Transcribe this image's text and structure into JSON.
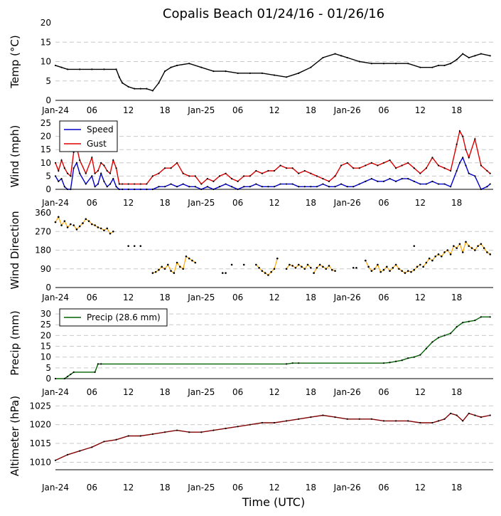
{
  "title": "Copalis Beach 01/24/16 - 01/26/16",
  "xlabel": "Time (UTC)",
  "x_ticks": [
    "Jan-24",
    "06",
    "12",
    "18",
    "Jan-25",
    "06",
    "12",
    "18",
    "Jan-26",
    "06",
    "12",
    "18"
  ],
  "colors": {
    "temp": "#000000",
    "speed": "#0000cc",
    "gust": "#dd0000",
    "direction": "#ffa500",
    "precip": "#006400",
    "altimeter": "#800000"
  },
  "chart_data": [
    {
      "type": "line",
      "name": "temperature",
      "ylabel": "Temp (°C)",
      "ylim": [
        0,
        20
      ],
      "yticks": [
        "0",
        "5",
        "10",
        "15",
        "20"
      ],
      "x_unit": "hours since Jan-24 00:00 UTC",
      "series": [
        {
          "name": "Temp",
          "x": [
            0,
            1,
            2,
            4,
            6,
            8,
            10,
            10.5,
            11,
            12,
            13,
            14,
            15,
            16,
            17,
            18,
            19,
            20,
            22,
            24,
            26,
            28,
            30,
            32,
            34,
            36,
            38,
            40,
            42,
            44,
            46,
            47,
            48,
            50,
            52,
            54,
            56,
            58,
            60,
            62,
            63,
            64,
            65,
            66,
            67,
            68,
            69,
            70,
            71.5
          ],
          "values": [
            9,
            8.5,
            8,
            8,
            8,
            8,
            8,
            6,
            4.5,
            3.5,
            3,
            3,
            3,
            2.5,
            4.5,
            7.5,
            8.5,
            9,
            9.5,
            8.5,
            7.5,
            7.5,
            7,
            7,
            7,
            6.5,
            6,
            7,
            8.5,
            11,
            12,
            11.5,
            11,
            10,
            9.5,
            9.5,
            9.5,
            9.5,
            8.5,
            8.5,
            9,
            9,
            9.5,
            10.5,
            12,
            11,
            11.5,
            12,
            11.5
          ]
        }
      ]
    },
    {
      "type": "line",
      "name": "wind",
      "ylabel": "Wind (mph)",
      "ylim": [
        0,
        25
      ],
      "yticks": [
        "0",
        "5",
        "10",
        "15",
        "20",
        "25"
      ],
      "legend": [
        "Speed",
        "Gust"
      ],
      "series": [
        {
          "name": "Speed",
          "x": [
            0,
            0.5,
            1,
            1.5,
            2,
            2.5,
            3,
            3.5,
            4,
            5,
            6,
            6.5,
            7,
            7.5,
            8,
            8.5,
            9,
            9.5,
            10,
            10.5,
            11,
            12,
            13,
            14,
            15,
            16,
            17,
            18,
            19,
            20,
            21,
            22,
            23,
            24,
            25,
            26,
            27,
            28,
            29,
            30,
            31,
            32,
            33,
            34,
            35,
            36,
            37,
            38,
            39,
            40,
            41,
            42,
            43,
            44,
            45,
            46,
            47,
            48,
            49,
            50,
            51,
            52,
            53,
            54,
            55,
            56,
            57,
            58,
            59,
            60,
            61,
            62,
            63,
            64,
            65,
            66,
            66.5,
            67,
            67.5,
            68,
            69,
            70,
            71,
            71.5
          ],
          "values": [
            5,
            3,
            4,
            1,
            0,
            0,
            8,
            10,
            6,
            2,
            5,
            1,
            2,
            6,
            3,
            1,
            2,
            4,
            1,
            0,
            0,
            0,
            0,
            0,
            0,
            0,
            1,
            1,
            2,
            1,
            2,
            1,
            1,
            0,
            1,
            0,
            1,
            2,
            1,
            0,
            1,
            1,
            2,
            1,
            1,
            1,
            2,
            2,
            2,
            1,
            1,
            1,
            1,
            2,
            1,
            1,
            2,
            1,
            1,
            2,
            3,
            4,
            3,
            3,
            4,
            3,
            4,
            4,
            3,
            2,
            2,
            3,
            2,
            2,
            1,
            7,
            10,
            12,
            9,
            6,
            5,
            0,
            1,
            2
          ]
        },
        {
          "name": "Gust",
          "x": [
            0,
            0.5,
            1,
            1.5,
            2,
            2.5,
            3,
            3.5,
            4,
            5,
            6,
            6.5,
            7,
            7.5,
            8,
            8.5,
            9,
            9.5,
            10,
            10.5,
            11,
            12,
            13,
            14,
            15,
            16,
            17,
            18,
            19,
            20,
            21,
            22,
            23,
            24,
            25,
            26,
            27,
            28,
            29,
            30,
            31,
            32,
            33,
            34,
            35,
            36,
            37,
            38,
            39,
            40,
            41,
            42,
            43,
            44,
            45,
            46,
            47,
            48,
            49,
            50,
            51,
            52,
            53,
            54,
            55,
            56,
            57,
            58,
            59,
            60,
            61,
            62,
            63,
            64,
            65,
            66,
            66.5,
            67,
            67.5,
            68,
            69,
            70,
            71,
            71.5
          ],
          "values": [
            10,
            7,
            11,
            8,
            6,
            5,
            14,
            16,
            11,
            6,
            12,
            6,
            7,
            10,
            9,
            7,
            6,
            11,
            8,
            2,
            2,
            2,
            2,
            2,
            2,
            5,
            6,
            8,
            8,
            10,
            6,
            5,
            5,
            2,
            4,
            3,
            5,
            6,
            4,
            3,
            5,
            5,
            7,
            6,
            7,
            7,
            9,
            8,
            8,
            6,
            7,
            6,
            5,
            4,
            3,
            5,
            9,
            10,
            8,
            8,
            9,
            10,
            9,
            10,
            11,
            8,
            9,
            10,
            8,
            6,
            8,
            12,
            9,
            8,
            7,
            17,
            22,
            20,
            15,
            12,
            19,
            9,
            7,
            6
          ]
        }
      ]
    },
    {
      "type": "scatter",
      "name": "wind_direction",
      "ylabel": "Wind Direction",
      "ylim": [
        0,
        360
      ],
      "yticks": [
        "0",
        "90",
        "180",
        "270",
        "360"
      ],
      "series": [
        {
          "name": "Direction",
          "segments": [
            {
              "x": [
                0,
                0.5,
                1,
                1.5,
                2,
                2.5
              ],
              "values": [
                315,
                340,
                300,
                320,
                290,
                305
              ]
            },
            {
              "x": [
                3,
                3.5,
                4,
                4.5,
                5,
                5.5,
                6,
                6.5,
                7,
                7.5,
                8,
                8.5,
                9,
                9.5
              ],
              "values": [
                300,
                280,
                295,
                310,
                330,
                320,
                305,
                300,
                290,
                285,
                275,
                285,
                260,
                270
              ]
            },
            {
              "x": [
                16,
                16.5,
                17,
                17.5,
                18,
                18.5,
                19,
                19.5,
                20,
                20.5,
                21,
                21.5,
                22,
                22.5,
                23
              ],
              "values": [
                70,
                75,
                85,
                100,
                90,
                110,
                80,
                70,
                120,
                100,
                90,
                150,
                140,
                130,
                120
              ]
            },
            {
              "x": [
                33,
                33.5,
                34,
                34.5,
                35,
                35.5,
                36,
                36.5
              ],
              "values": [
                110,
                95,
                80,
                70,
                60,
                75,
                90,
                140
              ]
            },
            {
              "x": [
                38,
                38.5,
                39,
                39.5,
                40,
                40.5,
                41,
                41.5,
                42
              ],
              "values": [
                90,
                110,
                105,
                95,
                110,
                100,
                90,
                110,
                95
              ]
            },
            {
              "x": [
                42.5,
                43,
                43.5,
                44,
                44.5,
                45,
                45.5,
                46
              ],
              "values": [
                70,
                95,
                110,
                100,
                90,
                105,
                85,
                80
              ]
            },
            {
              "x": [
                51,
                51.5,
                52,
                52.5,
                53,
                53.5,
                54,
                54.5,
                55,
                55.5,
                56,
                56.5,
                57,
                57.5,
                58,
                58.5,
                59,
                59.5,
                60
              ],
              "values": [
                130,
                100,
                80,
                90,
                110,
                75,
                85,
                100,
                80,
                95,
                110,
                90,
                80,
                70,
                80,
                75,
                85,
                100,
                110
              ]
            },
            {
              "x": [
                60.5,
                61,
                61.5,
                62,
                62.5,
                63,
                63.5,
                64,
                64.5,
                65,
                65.5,
                66,
                66.5,
                67,
                67.5,
                68,
                68.5,
                69,
                69.5,
                70,
                70.5,
                71,
                71.5
              ],
              "values": [
                100,
                120,
                140,
                130,
                150,
                160,
                150,
                170,
                180,
                160,
                200,
                190,
                210,
                170,
                220,
                200,
                190,
                180,
                200,
                210,
                190,
                170,
                160
              ]
            }
          ]
        },
        {
          "name": "Direction (isolated)",
          "x": [
            12,
            13,
            14,
            27.5,
            28,
            29,
            31,
            49,
            49.5,
            59
          ],
          "values": [
            200,
            200,
            200,
            70,
            70,
            110,
            110,
            95,
            95,
            200
          ]
        }
      ]
    },
    {
      "type": "line",
      "name": "precip",
      "ylabel": "Precip (mm)",
      "ylim": [
        0,
        33
      ],
      "yticks": [
        "0",
        "5",
        "10",
        "15",
        "20",
        "25",
        "30"
      ],
      "legend": [
        "Precip (28.6 mm)"
      ],
      "series": [
        {
          "name": "Precip",
          "x": [
            0,
            1.5,
            2,
            2.5,
            3,
            6.5,
            7,
            7.5,
            38,
            39,
            40,
            54,
            55,
            56,
            57,
            58,
            59,
            60,
            61,
            62,
            63,
            64,
            65,
            66,
            67,
            68,
            69,
            70,
            71.5
          ],
          "values": [
            0,
            0,
            1,
            2,
            3,
            3,
            6.8,
            6.8,
            6.8,
            7.2,
            7.2,
            7.2,
            7.5,
            8,
            8.5,
            9.5,
            10,
            11,
            14,
            17,
            19,
            20,
            21,
            24,
            26,
            26.5,
            27,
            28.6,
            28.6
          ]
        }
      ]
    },
    {
      "type": "line",
      "name": "altimeter",
      "ylabel": "Altimeter (hPa)",
      "ylim": [
        1008,
        1026
      ],
      "yticks": [
        "1010",
        "1015",
        "1020",
        "1025"
      ],
      "series": [
        {
          "name": "Altimeter",
          "x": [
            0,
            2,
            4,
            6,
            8,
            10,
            12,
            14,
            16,
            18,
            20,
            22,
            24,
            26,
            28,
            30,
            32,
            34,
            36,
            38,
            40,
            42,
            44,
            46,
            48,
            50,
            52,
            54,
            56,
            58,
            60,
            62,
            63,
            64,
            65,
            66,
            67,
            68,
            69,
            70,
            71.5
          ],
          "values": [
            1010.5,
            1012,
            1013,
            1014,
            1015.5,
            1016,
            1017,
            1017,
            1017.5,
            1018,
            1018.5,
            1018,
            1018,
            1018.5,
            1019,
            1019.5,
            1020,
            1020.5,
            1020.5,
            1021,
            1021.5,
            1022,
            1022.5,
            1022,
            1021.5,
            1021.5,
            1021.5,
            1021,
            1021,
            1021,
            1020.5,
            1020.5,
            1021,
            1021.5,
            1023,
            1022.5,
            1021,
            1023,
            1022.5,
            1022,
            1022.5
          ]
        }
      ]
    }
  ]
}
